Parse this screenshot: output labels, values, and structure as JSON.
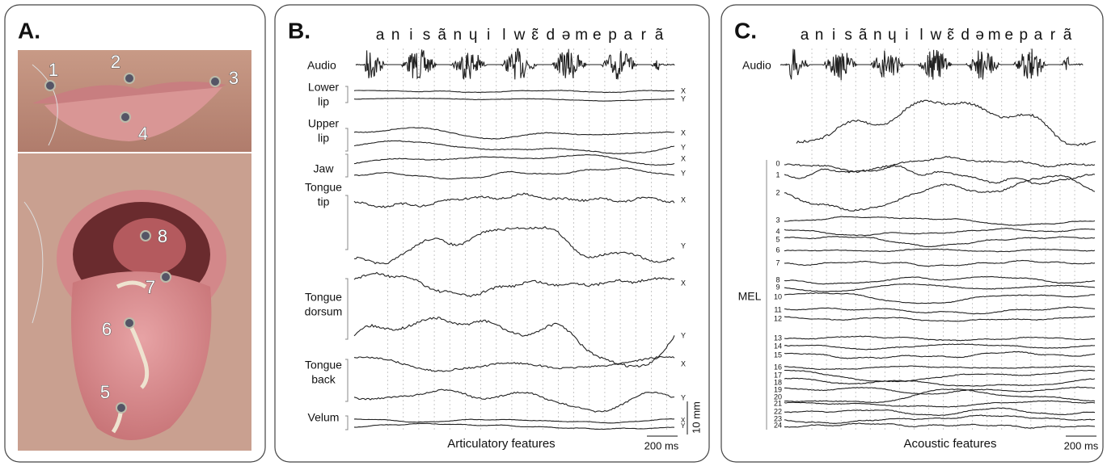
{
  "panels": [
    {
      "label": "A.",
      "markers": [
        "1",
        "2",
        "3",
        "4",
        "5",
        "6",
        "7",
        "8"
      ]
    },
    {
      "label": "B.",
      "phonemes": [
        "a",
        "n",
        "i",
        "s",
        "ã",
        "n",
        "ɥ",
        "i",
        "l",
        "w",
        "ɛ̃",
        "d",
        "ə",
        "m",
        "e",
        "p",
        "a",
        "r",
        "ã"
      ],
      "audio": "Audio",
      "tracks": [
        {
          "name": [
            "Lower",
            "lip"
          ],
          "axes": [
            "X",
            "Y"
          ]
        },
        {
          "name": [
            "Upper",
            "lip"
          ],
          "axes": [
            "X",
            "Y"
          ]
        },
        {
          "name": [
            "Jaw"
          ],
          "axes": [
            "X",
            "Y"
          ]
        },
        {
          "name": [
            "Tongue",
            "tip"
          ],
          "axes": [
            "X",
            "Y"
          ]
        },
        {
          "name": [
            "Tongue",
            "dorsum"
          ],
          "axes": [
            "X",
            "Y"
          ]
        },
        {
          "name": [
            "Tongue",
            "back"
          ],
          "axes": [
            "X",
            "Y"
          ]
        },
        {
          "name": [
            "Velum"
          ],
          "axes": [
            "X",
            "Y"
          ]
        }
      ],
      "scale_y": "10 mm",
      "scale_x": "200 ms",
      "caption": "Articulatory features"
    },
    {
      "label": "C.",
      "phonemes": [
        "a",
        "n",
        "i",
        "s",
        "ã",
        "n",
        "ɥ",
        "i",
        "l",
        "w",
        "ɛ̃",
        "d",
        "ə",
        "m",
        "e",
        "p",
        "a",
        "r",
        "ã"
      ],
      "audio": "Audio",
      "mel_label": "MEL",
      "mel_bins": [
        "0",
        "1",
        "2",
        "3",
        "4",
        "5",
        "6",
        "7",
        "8",
        "9",
        "10",
        "11",
        "12",
        "13",
        "14",
        "15",
        "16",
        "17",
        "18",
        "19",
        "20",
        "21",
        "22",
        "23",
        "24"
      ],
      "scale_x": "200 ms",
      "caption": "Acoustic features"
    }
  ]
}
